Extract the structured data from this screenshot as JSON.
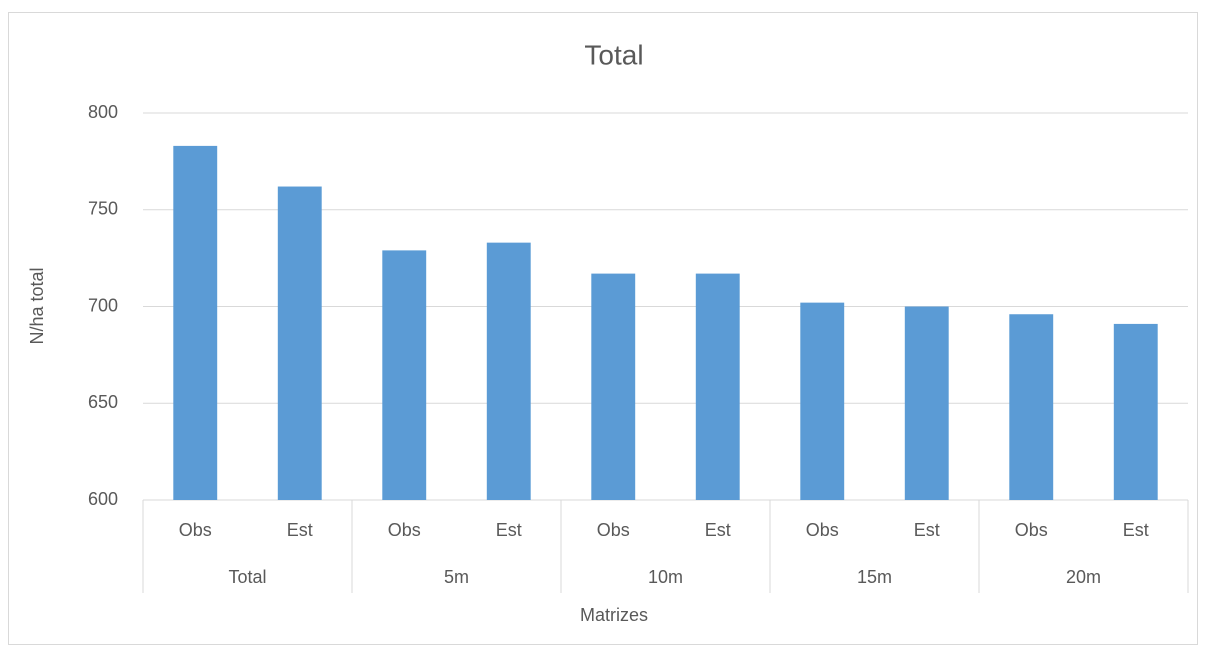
{
  "chart_data": {
    "type": "bar",
    "title": "Total",
    "x_label": "Matrizes",
    "y_label": "N/ha total",
    "categories": [
      "Obs",
      "Est",
      "Obs",
      "Est",
      "Obs",
      "Est",
      "Obs",
      "Est",
      "Obs",
      "Est"
    ],
    "groups": [
      "Total",
      "5m",
      "10m",
      "15m",
      "20m"
    ],
    "values": [
      783,
      762,
      729,
      733,
      717,
      717,
      702,
      700,
      696,
      691
    ],
    "color": "#5b9bd5",
    "ylim": [
      600,
      800
    ],
    "yticks": [
      600,
      650,
      700,
      750,
      800
    ],
    "grid": true
  }
}
